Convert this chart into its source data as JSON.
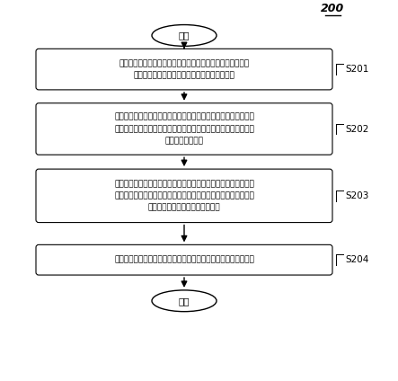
{
  "title_label": "200",
  "start_text": "开始",
  "end_text": "结束",
  "boxes": [
    {
      "label": "S201",
      "text": "设置基坐标系中的第一坐标轴的极限値为有效工作空间的设计\n变量，其中极限値包括极限最大値和极限最小値"
    },
    {
      "label": "S202",
      "text": "基于约束条件确定有效工作空间的非线性等式，以及根据非线性等\n式确定设计变量的目标函数，其中约束条件包括末端工具的极限朝\n向的空间向量集合"
    },
    {
      "label": "S203",
      "text": "在基坐标系中的第二坐标轴和第三坐标轴组成的平面上等间隔取点\n，通过优化目标函数计算出平面上每个点对应的末端工具所能达到\n的第一坐标轴上的最大値和最小値"
    },
    {
      "label": "S204",
      "text": "根据平面上所有的点对应的最大値和最小値确定最大有效工作空间"
    }
  ],
  "bg_color": "#ffffff",
  "box_edge_color": "#000000",
  "box_fill_color": "#ffffff",
  "arrow_color": "#000000",
  "text_color": "#000000",
  "font_size": 6.5,
  "label_font_size": 7.5,
  "title_font_size": 9
}
